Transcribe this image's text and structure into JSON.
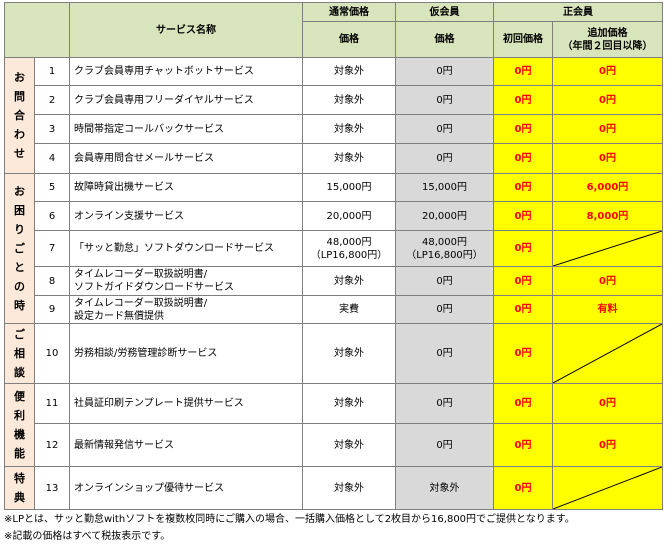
{
  "header": {
    "service_name": "サービス名称",
    "regular_price": "通常価格",
    "provisional_member": "仮会員",
    "full_member": "正会員",
    "price": "価格",
    "price2": "価格",
    "first_price": "初回価格",
    "additional_price": "追加価格",
    "additional_note": "（年間２回目以降）"
  },
  "categories": {
    "inquiry": "お問合わせ",
    "trouble": "お困りごとの時",
    "consult": "ご相談",
    "convenient": "便利機能",
    "benefit": "特典"
  },
  "rows": [
    {
      "no": "1",
      "name": "クラブ会員専用チャットボットサービス",
      "regular": "対象外",
      "provisional": "0円",
      "first": "0円",
      "additional": "0円"
    },
    {
      "no": "2",
      "name": "クラブ会員専用フリーダイヤルサービス",
      "regular": "対象外",
      "provisional": "0円",
      "first": "0円",
      "additional": "0円"
    },
    {
      "no": "3",
      "name": "時間帯指定コールバックサービス",
      "regular": "対象外",
      "provisional": "0円",
      "first": "0円",
      "additional": "0円"
    },
    {
      "no": "4",
      "name": "会員専用問合せメールサービス",
      "regular": "対象外",
      "provisional": "0円",
      "first": "0円",
      "additional": "0円"
    },
    {
      "no": "5",
      "name": "故障時貸出機サービス",
      "regular": "15,000円",
      "provisional": "15,000円",
      "first": "0円",
      "additional": "6,000円"
    },
    {
      "no": "6",
      "name": "オンライン支援サービス",
      "regular": "20,000円",
      "provisional": "20,000円",
      "first": "0円",
      "additional": "8,000円"
    },
    {
      "no": "7",
      "name": "「サッと勤怠」ソフトダウンロードサービス",
      "regular": "48,000円",
      "regular_sub": "（LP16,800円）",
      "provisional": "48,000円",
      "provisional_sub": "（LP16,800円）",
      "first": "0円"
    },
    {
      "no": "8",
      "name": "タイムレコーダー取扱説明書/",
      "name2": "ソフトガイドダウンロードサービス",
      "regular": "対象外",
      "provisional": "0円",
      "first": "0円",
      "additional": "0円"
    },
    {
      "no": "9",
      "name": "タイムレコーダー取扱説明書/",
      "name2": "設定カード無償提供",
      "regular": "実費",
      "provisional": "0円",
      "first": "0円",
      "additional": "有料"
    },
    {
      "no": "10",
      "name": "労務相談/労務管理診断サービス",
      "regular": "対象外",
      "provisional": "0円",
      "first": "0円"
    },
    {
      "no": "11",
      "name": "社員証印刷テンプレート提供サービス",
      "regular": "対象外",
      "provisional": "0円",
      "first": "0円",
      "additional": "0円"
    },
    {
      "no": "12",
      "name": "最新情報発信サービス",
      "regular": "対象外",
      "provisional": "0円",
      "first": "0円",
      "additional": "0円"
    },
    {
      "no": "13",
      "name": "オンラインショップ優待サービス",
      "regular": "対象外",
      "provisional": "対象外",
      "first": "0円"
    }
  ],
  "notes": {
    "lp": "※LPとは、サッと勤怠withソフトを複数枚同時にご購入の場合、一括購入価格として2枚目から16,800円でご提供となります。",
    "tax": "※記載の価格はすべて税抜表示です。"
  }
}
